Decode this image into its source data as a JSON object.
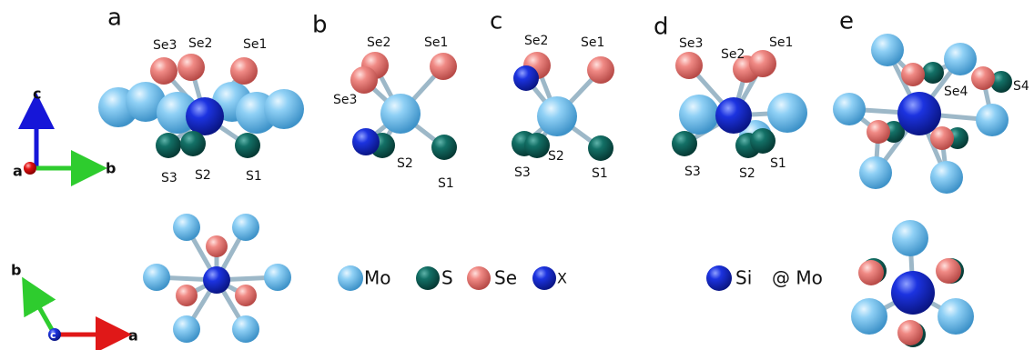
{
  "panels": [
    {
      "label": "a",
      "atoms": [
        "Se3",
        "Se2",
        "Se1",
        "S3",
        "S2",
        "S1"
      ]
    },
    {
      "label": "b",
      "atoms": [
        "Se2",
        "Se1",
        "Se3",
        "S2",
        "S1"
      ]
    },
    {
      "label": "c",
      "atoms": [
        "Se2",
        "Se1",
        "S3",
        "S2",
        "S1"
      ]
    },
    {
      "label": "d",
      "atoms": [
        "Se3",
        "Se2",
        "Se1",
        "S3",
        "S2",
        "S1"
      ]
    },
    {
      "label": "e",
      "atoms": [
        "Se4",
        "S4"
      ]
    }
  ],
  "axes_top": {
    "vertical": "c",
    "horizontal": "b",
    "out": "a"
  },
  "axes_bottom": {
    "vertical": "b",
    "horizontal": "a",
    "out": "c"
  },
  "legend": [
    "Mo",
    "S",
    "Se",
    "X"
  ],
  "legend2": {
    "marker": "Si",
    "text": "@ Mo"
  }
}
